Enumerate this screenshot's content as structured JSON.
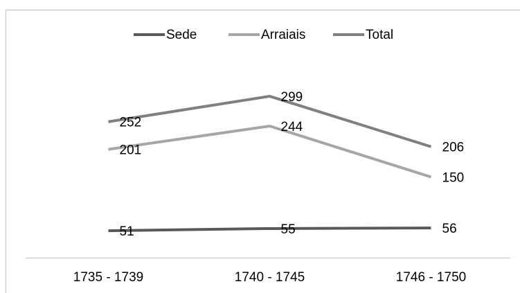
{
  "chart_data": {
    "type": "line",
    "categories": [
      "1735 - 1739",
      "1740 - 1745",
      "1746 - 1750"
    ],
    "series": [
      {
        "name": "Sede",
        "color": "#595959",
        "values": [
          51,
          55,
          56
        ]
      },
      {
        "name": "Arraiais",
        "color": "#a6a6a6",
        "values": [
          201,
          244,
          150
        ]
      },
      {
        "name": "Total",
        "color": "#7f7f7f",
        "values": [
          252,
          299,
          206
        ]
      }
    ],
    "ylim": [
      0,
      350
    ],
    "legend": "top"
  }
}
